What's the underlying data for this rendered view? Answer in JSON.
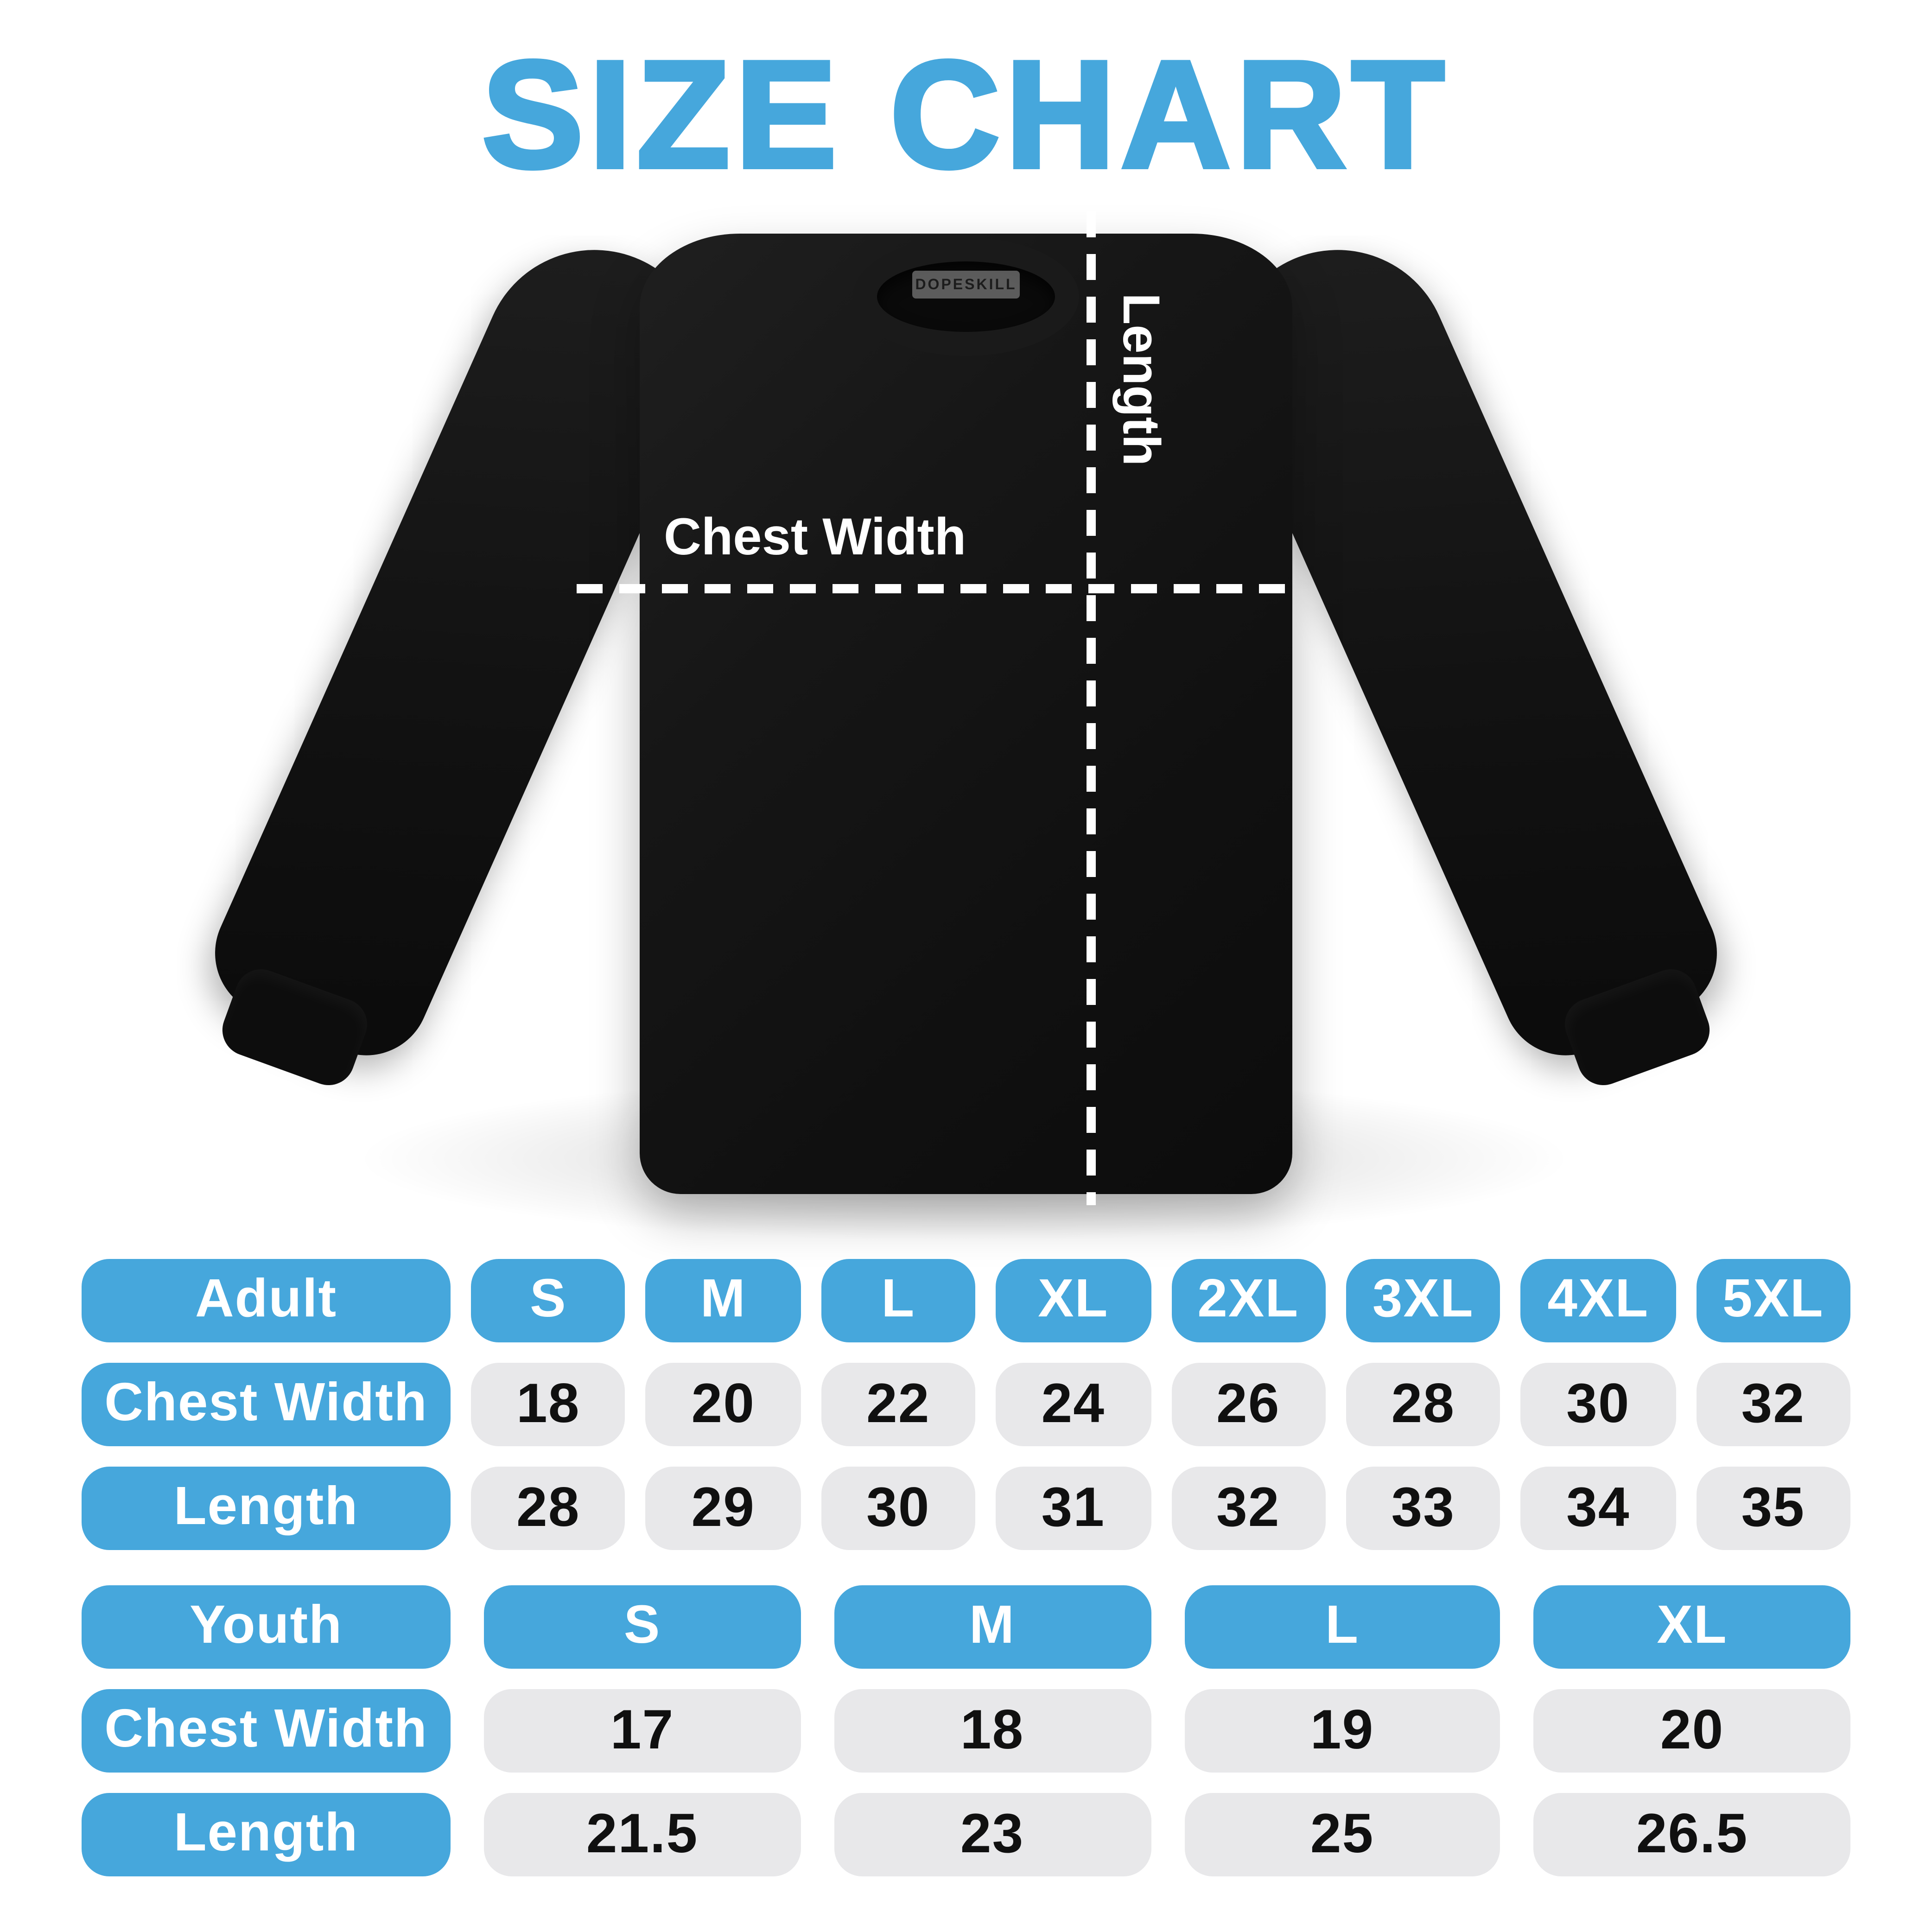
{
  "page": {
    "title": "SIZE CHART"
  },
  "diagram": {
    "brand_label": "DOPESKILL",
    "chest_width_label": "Chest Width",
    "length_label": "Length"
  },
  "chart_data": [
    {
      "type": "table",
      "title": "Adult sizes",
      "columns": [
        "Adult",
        "S",
        "M",
        "L",
        "XL",
        "2XL",
        "3XL",
        "4XL",
        "5XL"
      ],
      "rows": [
        [
          "Chest Width",
          18,
          20,
          22,
          24,
          26,
          28,
          30,
          32
        ],
        [
          "Length",
          28,
          29,
          30,
          31,
          32,
          33,
          34,
          35
        ]
      ]
    },
    {
      "type": "table",
      "title": "Youth sizes",
      "columns": [
        "Youth",
        "S",
        "M",
        "L",
        "XL"
      ],
      "rows": [
        [
          "Chest Width",
          17,
          18,
          19,
          20
        ],
        [
          "Length",
          21.5,
          23,
          25,
          26.5
        ]
      ]
    }
  ],
  "colors": {
    "accent_blue": "#46A7DC",
    "pill_gray": "#E8E8EA",
    "shirt_black": "#121212",
    "measure_line_white": "#FFFFFF",
    "value_text": "#101010"
  }
}
